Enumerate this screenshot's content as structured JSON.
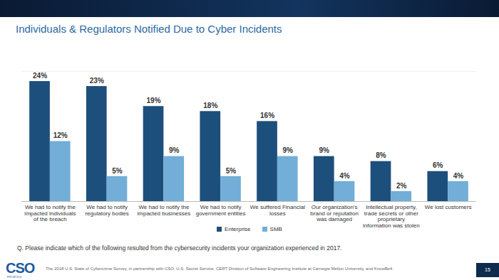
{
  "chart_data": {
    "type": "bar",
    "title": "Individuals & Regulators Notified Due to Cyber Incidents",
    "categories": [
      "We had to notify the impacted individuals of the breach",
      "We had to notify regulatory bodies",
      "We had to notify the impacted businesses",
      "We had to notify government entities",
      "We suffered Financial losses",
      "Our organization's brand or reputation was damaged",
      "Intellectual property, trade secrets or other proprietary information was stolen",
      "We lost customers"
    ],
    "series": [
      {
        "name": "Enterprise",
        "color": "#1d4f7c",
        "values": [
          24,
          23,
          19,
          18,
          16,
          9,
          8,
          6
        ],
        "value_labels": [
          "24%",
          "23%",
          "19%",
          "18%",
          "16%",
          "9%",
          "8%",
          "6%"
        ]
      },
      {
        "name": "SMB",
        "color": "#72aed7",
        "values": [
          12,
          5,
          9,
          5,
          9,
          4,
          2,
          4
        ],
        "value_labels": [
          "12%",
          "5%",
          "9%",
          "5%",
          "9%",
          "4%",
          "2%",
          "4%"
        ]
      }
    ],
    "ylim": [
      0,
      26
    ],
    "tick_labels": "x",
    "grid": false,
    "data_labels": true,
    "legend": "bottom",
    "annotations": [
      "Q. Please indicate which of the following resulted from the cybersecurity incidents your organization experienced in 2017.",
      "The 2018 U.S. State of Cybercrime Survey, in partnership with CSO, U.S. Secret Service, CERT Division of Software Engineering Institute at Carnegie Mellon University, and KnowBe4",
      "15",
      "CSO",
      "FROM IDG"
    ]
  }
}
